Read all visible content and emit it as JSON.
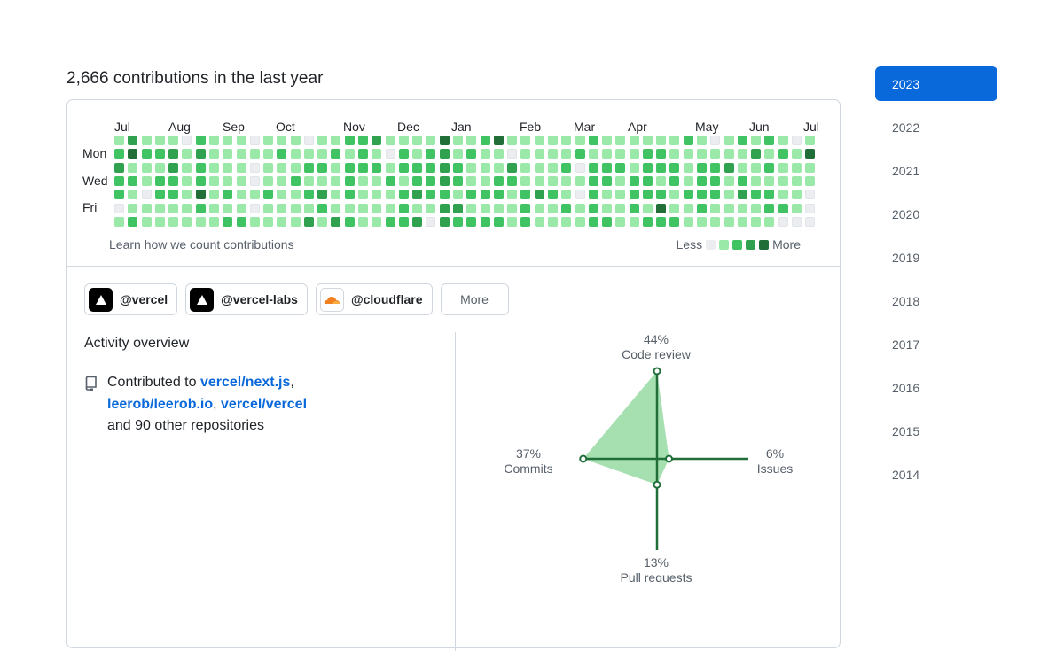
{
  "heading": "2,666 contributions in the last year",
  "calendar": {
    "months": [
      "Jul",
      "Aug",
      "Sep",
      "Oct",
      "Nov",
      "Dec",
      "Jan",
      "Feb",
      "Mar",
      "Apr",
      "May",
      "Jun",
      "Jul"
    ],
    "day_labels": [
      "Mon",
      "Wed",
      "Fri"
    ],
    "levels": [
      [
        1,
        3,
        1,
        1,
        1,
        0,
        2,
        1,
        1,
        1,
        0,
        1,
        1,
        1,
        0,
        1,
        1,
        2,
        2,
        3,
        1,
        1,
        1,
        1,
        4,
        1,
        1,
        2,
        4,
        1,
        1,
        1,
        1,
        1,
        1,
        2,
        1,
        1,
        1,
        1,
        1,
        1,
        2,
        1,
        0,
        1,
        2,
        1,
        2,
        1,
        0,
        1
      ],
      [
        2,
        4,
        2,
        2,
        3,
        1,
        3,
        1,
        1,
        1,
        1,
        1,
        2,
        1,
        1,
        1,
        2,
        1,
        2,
        1,
        0,
        2,
        1,
        2,
        3,
        1,
        2,
        1,
        1,
        0,
        1,
        1,
        1,
        1,
        2,
        1,
        1,
        1,
        1,
        2,
        2,
        1,
        1,
        1,
        1,
        1,
        1,
        3,
        1,
        2,
        1,
        4
      ],
      [
        3,
        1,
        1,
        1,
        3,
        1,
        2,
        1,
        1,
        1,
        0,
        1,
        1,
        1,
        2,
        2,
        1,
        2,
        2,
        2,
        1,
        2,
        2,
        2,
        3,
        2,
        1,
        1,
        1,
        3,
        1,
        1,
        1,
        2,
        0,
        2,
        2,
        2,
        1,
        2,
        2,
        2,
        1,
        2,
        2,
        3,
        1,
        1,
        2,
        1,
        1,
        1
      ],
      [
        2,
        2,
        1,
        2,
        2,
        1,
        2,
        1,
        1,
        1,
        0,
        1,
        1,
        2,
        1,
        1,
        1,
        2,
        1,
        1,
        2,
        1,
        2,
        2,
        3,
        2,
        1,
        1,
        2,
        2,
        1,
        1,
        1,
        1,
        1,
        2,
        2,
        1,
        2,
        2,
        1,
        2,
        1,
        2,
        2,
        1,
        2,
        1,
        1,
        1,
        1,
        1
      ],
      [
        2,
        1,
        0,
        2,
        2,
        1,
        4,
        1,
        2,
        1,
        1,
        2,
        1,
        1,
        2,
        3,
        1,
        2,
        1,
        1,
        1,
        2,
        3,
        2,
        2,
        1,
        2,
        2,
        2,
        1,
        2,
        3,
        2,
        1,
        0,
        2,
        1,
        1,
        2,
        2,
        2,
        1,
        2,
        2,
        2,
        1,
        3,
        2,
        2,
        1,
        1,
        0
      ],
      [
        0,
        1,
        1,
        1,
        1,
        1,
        2,
        1,
        1,
        1,
        0,
        1,
        1,
        1,
        1,
        2,
        1,
        1,
        1,
        1,
        1,
        2,
        1,
        1,
        3,
        3,
        1,
        1,
        1,
        1,
        2,
        1,
        1,
        2,
        1,
        2,
        1,
        1,
        2,
        1,
        4,
        1,
        1,
        2,
        1,
        1,
        1,
        1,
        2,
        2,
        1,
        0
      ],
      [
        1,
        2,
        1,
        1,
        1,
        1,
        1,
        1,
        2,
        2,
        1,
        1,
        1,
        1,
        3,
        1,
        3,
        2,
        1,
        1,
        2,
        2,
        3,
        0,
        3,
        2,
        2,
        2,
        2,
        1,
        2,
        1,
        1,
        1,
        1,
        2,
        2,
        1,
        1,
        2,
        2,
        2,
        1,
        1,
        1,
        1,
        1,
        1,
        1,
        0,
        0,
        0
      ]
    ],
    "colors": {
      "0": "#ebedf0",
      "1": "#9be9a8",
      "2": "#40c463",
      "3": "#30a14e",
      "4": "#216e39"
    },
    "learn_link": "Learn how we count contributions",
    "legend_less": "Less",
    "legend_more": "More"
  },
  "orgs": [
    {
      "label": "@vercel",
      "logo": "vercel-logo-icon"
    },
    {
      "label": "@vercel-labs",
      "logo": "vercel-logo-icon"
    },
    {
      "label": "@cloudflare",
      "logo": "cloudflare-logo-icon"
    }
  ],
  "orgs_more": "More",
  "activity": {
    "title": "Activity overview",
    "prefix": "Contributed to",
    "repos": [
      "vercel/next.js",
      "leerob/leerob.io",
      "vercel/vercel"
    ],
    "suffix": "and 90 other repositories",
    "icon": "repo-icon"
  },
  "radar": {
    "code_review": {
      "pct": "44%",
      "label": "Code review",
      "value": 44
    },
    "issues": {
      "pct": "6%",
      "label": "Issues",
      "value": 6
    },
    "pull_requests": {
      "pct": "13%",
      "label": "Pull requests",
      "value": 13
    },
    "commits": {
      "pct": "37%",
      "label": "Commits",
      "value": 37
    },
    "fill_color": "#a6e0b1",
    "stroke_color": "#216e39"
  },
  "years": [
    "2023",
    "2022",
    "2021",
    "2020",
    "2019",
    "2018",
    "2017",
    "2016",
    "2015",
    "2014"
  ],
  "selected_year": "2023",
  "accent": "#0969da"
}
